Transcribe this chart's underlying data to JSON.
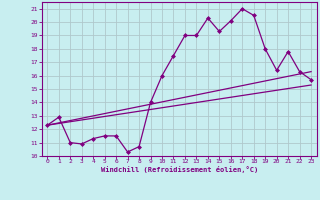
{
  "xlabel": "Windchill (Refroidissement éolien,°C)",
  "bg_color": "#c8eef0",
  "line_color": "#800080",
  "grid_color": "#b0c8cc",
  "xlim": [
    -0.5,
    23.5
  ],
  "ylim": [
    10,
    21.5
  ],
  "xticks": [
    0,
    1,
    2,
    3,
    4,
    5,
    6,
    7,
    8,
    9,
    10,
    11,
    12,
    13,
    14,
    15,
    16,
    17,
    18,
    19,
    20,
    21,
    22,
    23
  ],
  "yticks": [
    10,
    11,
    12,
    13,
    14,
    15,
    16,
    17,
    18,
    19,
    20,
    21
  ],
  "line1_x": [
    0,
    1,
    2,
    3,
    4,
    5,
    6,
    7,
    8,
    9,
    10,
    11,
    12,
    13,
    14,
    15,
    16,
    17,
    18,
    19,
    20,
    21,
    22,
    23
  ],
  "line1_y": [
    12.3,
    12.9,
    11.0,
    10.9,
    11.3,
    11.5,
    11.5,
    10.3,
    10.7,
    14.0,
    16.0,
    17.5,
    19.0,
    19.0,
    20.3,
    19.3,
    20.1,
    21.0,
    20.5,
    18.0,
    16.4,
    17.8,
    16.3,
    15.7
  ],
  "line2_x": [
    0,
    23
  ],
  "line2_y": [
    12.3,
    16.3
  ],
  "line3_x": [
    0,
    23
  ],
  "line3_y": [
    12.3,
    15.3
  ]
}
